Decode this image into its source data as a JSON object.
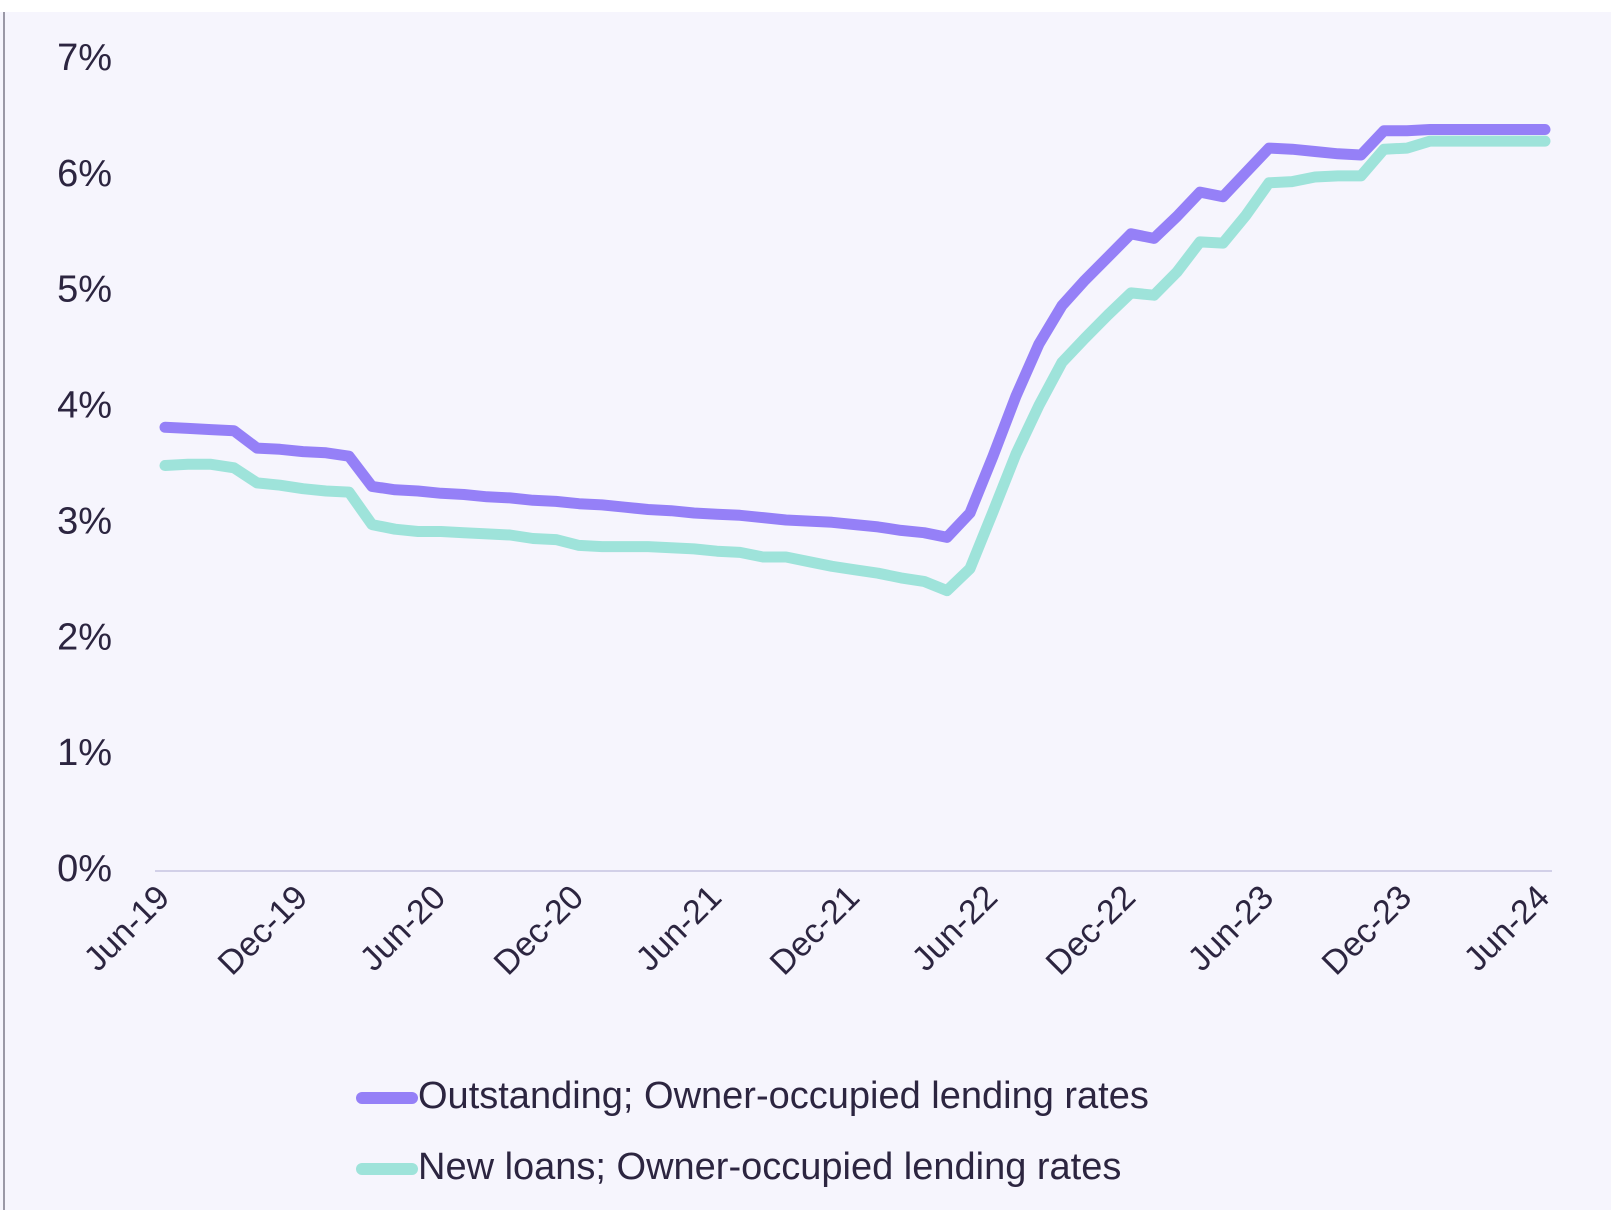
{
  "chart_data": {
    "type": "line",
    "categories": [
      "Jun-19",
      null,
      null,
      null,
      null,
      null,
      "Dec-19",
      null,
      null,
      null,
      null,
      null,
      "Jun-20",
      null,
      null,
      null,
      null,
      null,
      "Dec-20",
      null,
      null,
      null,
      null,
      null,
      "Jun-21",
      null,
      null,
      null,
      null,
      null,
      "Dec-21",
      null,
      null,
      null,
      null,
      null,
      "Jun-22",
      null,
      null,
      null,
      null,
      null,
      "Dec-22",
      null,
      null,
      null,
      null,
      null,
      "Jun-23",
      null,
      null,
      null,
      null,
      null,
      "Dec-23",
      null,
      null,
      null,
      null,
      null,
      "Jun-24"
    ],
    "series": [
      {
        "name": "Outstanding; Owner-occupied lending rates",
        "color": "#9580f7",
        "values": [
          3.83,
          3.82,
          3.81,
          3.8,
          3.65,
          3.64,
          3.62,
          3.61,
          3.58,
          3.32,
          3.29,
          3.28,
          3.26,
          3.25,
          3.23,
          3.22,
          3.2,
          3.19,
          3.17,
          3.16,
          3.14,
          3.12,
          3.11,
          3.09,
          3.08,
          3.07,
          3.05,
          3.03,
          3.02,
          3.01,
          2.99,
          2.97,
          2.94,
          2.92,
          2.88,
          3.09,
          3.58,
          4.1,
          4.55,
          4.88,
          5.1,
          5.3,
          5.5,
          5.46,
          5.65,
          5.86,
          5.82,
          6.03,
          6.24,
          6.23,
          6.21,
          6.19,
          6.18,
          6.39,
          6.39,
          6.4,
          6.4,
          6.4,
          6.4,
          6.4,
          6.4
        ]
      },
      {
        "name": "New loans; Owner-occupied lending rates",
        "color": "#9ee3da",
        "values": [
          3.5,
          3.51,
          3.51,
          3.48,
          3.35,
          3.33,
          3.3,
          3.28,
          3.27,
          2.99,
          2.95,
          2.93,
          2.93,
          2.92,
          2.91,
          2.9,
          2.87,
          2.86,
          2.81,
          2.8,
          2.8,
          2.8,
          2.79,
          2.78,
          2.76,
          2.75,
          2.71,
          2.71,
          2.67,
          2.63,
          2.6,
          2.57,
          2.53,
          2.5,
          2.42,
          2.61,
          3.1,
          3.6,
          4.02,
          4.39,
          4.6,
          4.8,
          4.99,
          4.97,
          5.17,
          5.43,
          5.42,
          5.66,
          5.94,
          5.95,
          5.99,
          6.0,
          6.0,
          6.23,
          6.24,
          6.3,
          6.3,
          6.3,
          6.3,
          6.3,
          6.3
        ]
      }
    ],
    "ylim": [
      0,
      7
    ],
    "yticks": [
      {
        "value": 0,
        "label": "0%"
      },
      {
        "value": 1,
        "label": "1%"
      },
      {
        "value": 2,
        "label": "2%"
      },
      {
        "value": 3,
        "label": "3%"
      },
      {
        "value": 4,
        "label": "4%"
      },
      {
        "value": 5,
        "label": "5%"
      },
      {
        "value": 6,
        "label": "6%"
      },
      {
        "value": 7,
        "label": "7%"
      }
    ],
    "legend": "bottom"
  }
}
